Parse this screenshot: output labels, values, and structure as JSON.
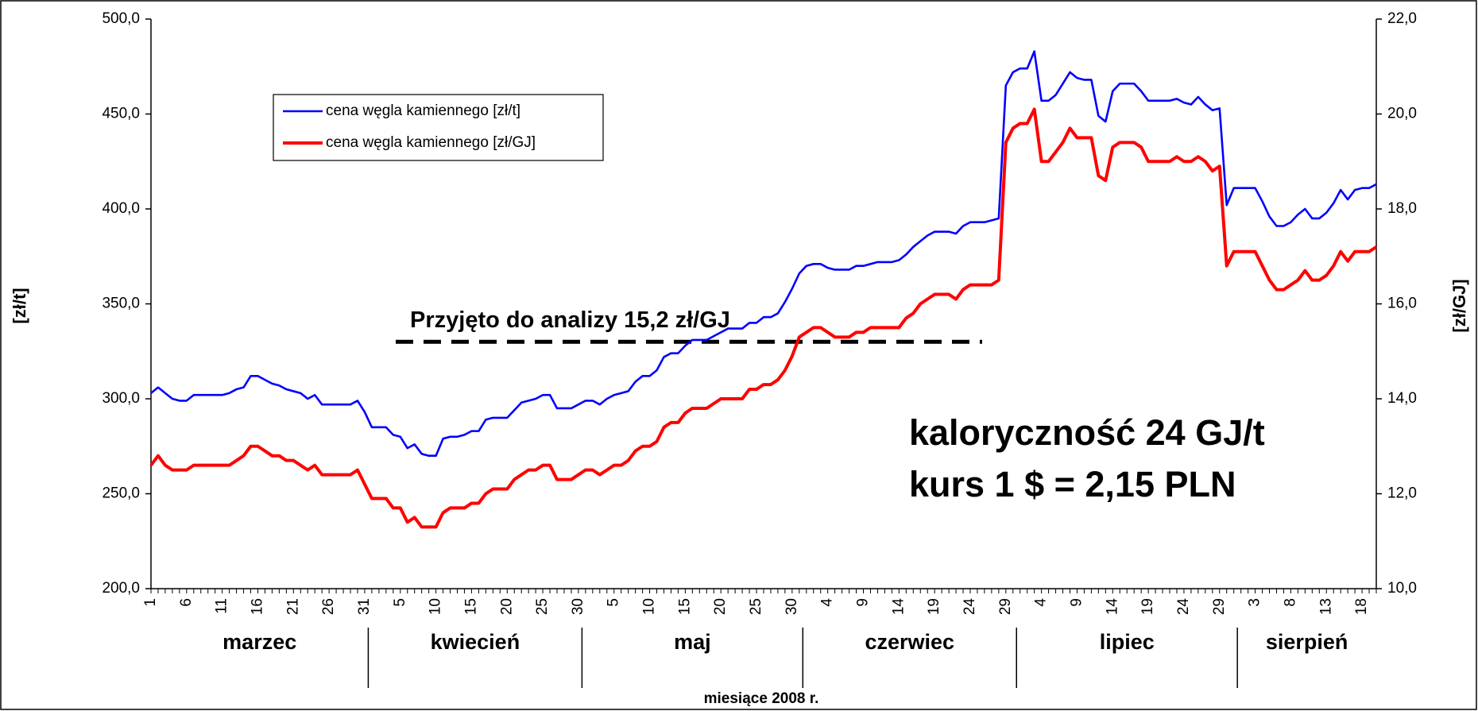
{
  "chart_data": {
    "type": "line",
    "x_label": "miesiące 2008 r.",
    "y_label": "[zł/t]",
    "y2_label": "[zł/GJ]",
    "months": [
      "marzec",
      "kwiecień",
      "maj",
      "czerwiec",
      "lipiec",
      "sierpień"
    ],
    "annotations": [
      "kaloryczność 24 GJ/t",
      "kurs 1 $ = 2,15 PLN"
    ],
    "reference_line": {
      "value": 15.2,
      "label": "Przyjęto do analizy 15,2 zł/GJ",
      "axis": "y2"
    },
    "legend": "upper left",
    "categories": [
      "1",
      null,
      null,
      null,
      null,
      "6",
      null,
      null,
      null,
      null,
      "11",
      null,
      null,
      null,
      null,
      "16",
      null,
      null,
      null,
      null,
      "21",
      null,
      null,
      null,
      null,
      "26",
      null,
      null,
      null,
      null,
      "31",
      null,
      null,
      null,
      null,
      "5",
      null,
      null,
      null,
      null,
      "10",
      null,
      null,
      null,
      null,
      "15",
      null,
      null,
      null,
      null,
      "20",
      null,
      null,
      null,
      null,
      "25",
      null,
      null,
      null,
      null,
      "30",
      null,
      null,
      null,
      null,
      "5",
      null,
      null,
      null,
      null,
      "10",
      null,
      null,
      null,
      null,
      "15",
      null,
      null,
      null,
      null,
      "20",
      null,
      null,
      null,
      null,
      "25",
      null,
      null,
      null,
      null,
      "30",
      null,
      null,
      null,
      null,
      "4",
      null,
      null,
      null,
      null,
      "9",
      null,
      null,
      null,
      null,
      "14",
      null,
      null,
      null,
      null,
      "19",
      null,
      null,
      null,
      null,
      "24",
      null,
      null,
      null,
      null,
      "29",
      null,
      null,
      null,
      null,
      "4",
      null,
      null,
      null,
      null,
      "9",
      null,
      null,
      null,
      null,
      "14",
      null,
      null,
      null,
      null,
      "19",
      null,
      null,
      null,
      null,
      "24",
      null,
      null,
      null,
      null,
      "29",
      null,
      null,
      null,
      null,
      "3",
      null,
      null,
      null,
      null,
      "8",
      null,
      null,
      null,
      null,
      "13",
      null,
      null,
      null,
      null,
      "18",
      null,
      null
    ],
    "series": [
      {
        "name": "cena węgla kamiennego [zł/t]",
        "color": "#0000ff",
        "axis": "y",
        "values": [
          303,
          306,
          303,
          300,
          299,
          299,
          302,
          302,
          302,
          302,
          302,
          303,
          305,
          306,
          312,
          312,
          310,
          308,
          307,
          305,
          304,
          303,
          300,
          302,
          297,
          297,
          297,
          297,
          297,
          299,
          293,
          285,
          285,
          285,
          281,
          280,
          274,
          276,
          271,
          270,
          270,
          279,
          280,
          280,
          281,
          283,
          283,
          289,
          290,
          290,
          290,
          294,
          298,
          299,
          300,
          302,
          302,
          295,
          295,
          295,
          297,
          299,
          299,
          297,
          300,
          302,
          303,
          304,
          309,
          312,
          312,
          315,
          322,
          324,
          324,
          328,
          331,
          331,
          331,
          333,
          335,
          337,
          337,
          337,
          340,
          340,
          343,
          343,
          345,
          351,
          358,
          366,
          370,
          371,
          371,
          369,
          368,
          368,
          368,
          370,
          370,
          371,
          372,
          372,
          372,
          373,
          376,
          380,
          383,
          386,
          388,
          388,
          388,
          387,
          391,
          393,
          393,
          393,
          394,
          395,
          465,
          472,
          474,
          474,
          483,
          457,
          457,
          460,
          466,
          472,
          469,
          468,
          468,
          449,
          446,
          462,
          466,
          466,
          466,
          462,
          457,
          457,
          457,
          457,
          458,
          456,
          455,
          459,
          455,
          452,
          453,
          402,
          411,
          411,
          411,
          411,
          404,
          396,
          391,
          391,
          393,
          397,
          400,
          395,
          395,
          398,
          403,
          410,
          405,
          410,
          411,
          411,
          413
        ]
      },
      {
        "name": "cena węgla kamiennego [zł/GJ]",
        "color": "#ff0000",
        "axis": "y2",
        "values": [
          12.6,
          12.8,
          12.6,
          12.5,
          12.5,
          12.5,
          12.6,
          12.6,
          12.6,
          12.6,
          12.6,
          12.6,
          12.7,
          12.8,
          13.0,
          13.0,
          12.9,
          12.8,
          12.8,
          12.7,
          12.7,
          12.6,
          12.5,
          12.6,
          12.4,
          12.4,
          12.4,
          12.4,
          12.4,
          12.5,
          12.2,
          11.9,
          11.9,
          11.9,
          11.7,
          11.7,
          11.4,
          11.5,
          11.3,
          11.3,
          11.3,
          11.6,
          11.7,
          11.7,
          11.7,
          11.8,
          11.8,
          12.0,
          12.1,
          12.1,
          12.1,
          12.3,
          12.4,
          12.5,
          12.5,
          12.6,
          12.6,
          12.3,
          12.3,
          12.3,
          12.4,
          12.5,
          12.5,
          12.4,
          12.5,
          12.6,
          12.6,
          12.7,
          12.9,
          13.0,
          13.0,
          13.1,
          13.4,
          13.5,
          13.5,
          13.7,
          13.8,
          13.8,
          13.8,
          13.9,
          14.0,
          14.0,
          14.0,
          14.0,
          14.2,
          14.2,
          14.3,
          14.3,
          14.4,
          14.6,
          14.9,
          15.3,
          15.4,
          15.5,
          15.5,
          15.4,
          15.3,
          15.3,
          15.3,
          15.4,
          15.4,
          15.5,
          15.5,
          15.5,
          15.5,
          15.5,
          15.7,
          15.8,
          16.0,
          16.1,
          16.2,
          16.2,
          16.2,
          16.1,
          16.3,
          16.4,
          16.4,
          16.4,
          16.4,
          16.5,
          19.4,
          19.7,
          19.8,
          19.8,
          20.1,
          19.0,
          19.0,
          19.2,
          19.4,
          19.7,
          19.5,
          19.5,
          19.5,
          18.7,
          18.6,
          19.3,
          19.4,
          19.4,
          19.4,
          19.3,
          19.0,
          19.0,
          19.0,
          19.0,
          19.1,
          19.0,
          19.0,
          19.1,
          19.0,
          18.8,
          18.9,
          16.8,
          17.1,
          17.1,
          17.1,
          17.1,
          16.8,
          16.5,
          16.3,
          16.3,
          16.4,
          16.5,
          16.7,
          16.5,
          16.5,
          16.6,
          16.8,
          17.1,
          16.9,
          17.1,
          17.1,
          17.1,
          17.2
        ]
      }
    ],
    "ylim": [
      200,
      500
    ],
    "yticks": [
      {
        "value": 200,
        "label": "200,0"
      },
      {
        "value": 250,
        "label": "250,0"
      },
      {
        "value": 300,
        "label": "300,0"
      },
      {
        "value": 350,
        "label": "350,0"
      },
      {
        "value": 400,
        "label": "400,0"
      },
      {
        "value": 450,
        "label": "450,0"
      },
      {
        "value": 500,
        "label": "500,0"
      }
    ],
    "y2lim": [
      10,
      22
    ],
    "y2ticks": [
      {
        "value": 10,
        "label": "10,0"
      },
      {
        "value": 12,
        "label": "12,0"
      },
      {
        "value": 14,
        "label": "14,0"
      },
      {
        "value": 16,
        "label": "16,0"
      },
      {
        "value": 18,
        "label": "18,0"
      },
      {
        "value": 20,
        "label": "20,0"
      },
      {
        "value": 22,
        "label": "22,0"
      }
    ]
  }
}
